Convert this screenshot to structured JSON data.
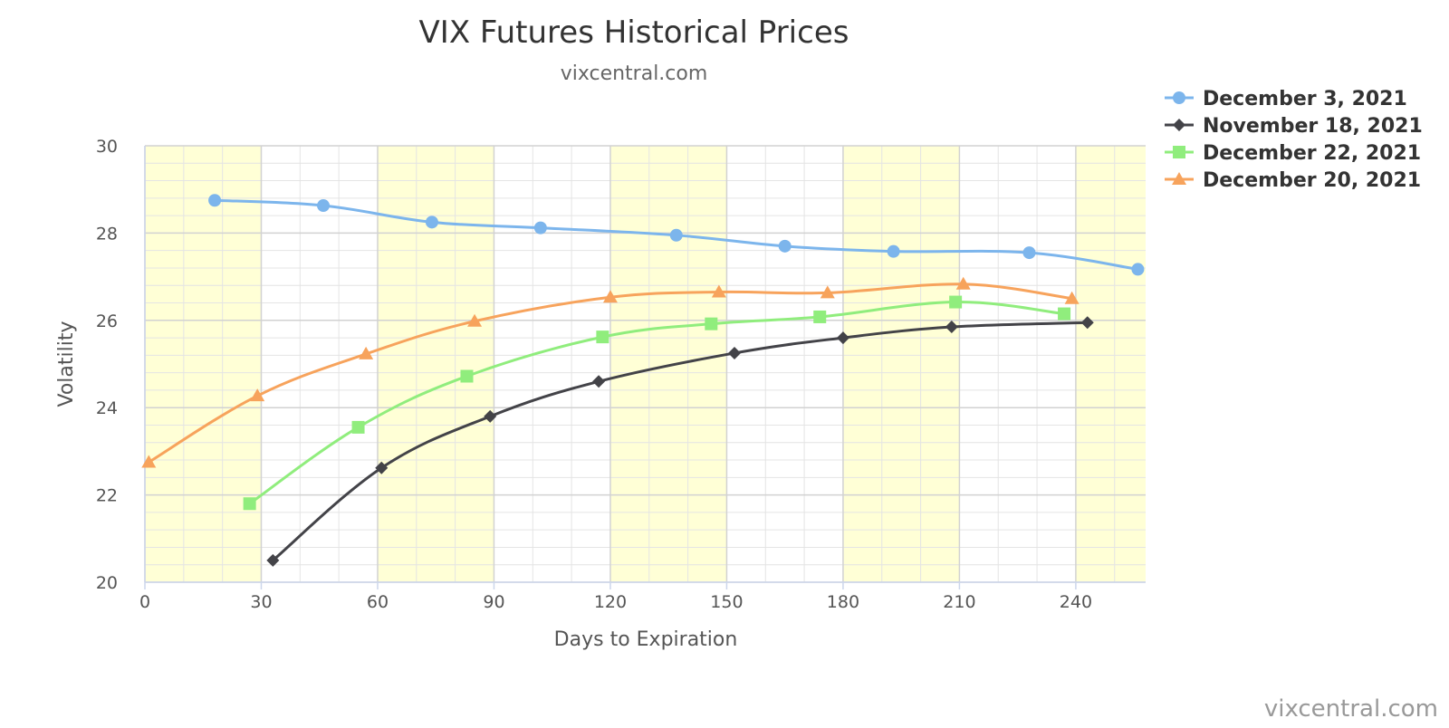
{
  "chart_data": {
    "type": "line",
    "title": "VIX Futures Historical Prices",
    "subtitle": "vixcentral.com",
    "xlabel": "Days to Expiration",
    "ylabel": "Volatility",
    "xlim": [
      0,
      258
    ],
    "ylim": [
      20,
      30
    ],
    "x_ticks": [
      0,
      30,
      60,
      90,
      120,
      150,
      180,
      210,
      240
    ],
    "y_ticks": [
      20,
      22,
      24,
      26,
      28,
      30
    ],
    "grid": true,
    "legend_position": "top-right",
    "credit": "vixcentral.com",
    "series": [
      {
        "name": "December 3, 2021",
        "color": "#7cb5ec",
        "marker": "circle",
        "x": [
          18,
          46,
          74,
          102,
          137,
          165,
          193,
          228,
          256
        ],
        "y": [
          28.75,
          28.63,
          28.25,
          28.12,
          27.95,
          27.7,
          27.58,
          27.55,
          27.17
        ]
      },
      {
        "name": "November 18, 2021",
        "color": "#434348",
        "marker": "diamond",
        "x": [
          33,
          61,
          89,
          117,
          152,
          180,
          208,
          243
        ],
        "y": [
          20.5,
          22.62,
          23.8,
          24.6,
          25.25,
          25.6,
          25.85,
          25.95
        ]
      },
      {
        "name": "December 22, 2021",
        "color": "#90ed7d",
        "marker": "square",
        "x": [
          27,
          55,
          83,
          118,
          146,
          174,
          209,
          237
        ],
        "y": [
          21.8,
          23.55,
          24.72,
          25.62,
          25.92,
          26.08,
          26.42,
          26.15
        ]
      },
      {
        "name": "December 20, 2021",
        "color": "#f7a35c",
        "marker": "triangle",
        "x": [
          1,
          29,
          57,
          85,
          120,
          148,
          176,
          211,
          239
        ],
        "y": [
          22.75,
          24.27,
          25.23,
          25.98,
          26.53,
          26.65,
          26.63,
          26.83,
          26.5
        ]
      }
    ]
  }
}
